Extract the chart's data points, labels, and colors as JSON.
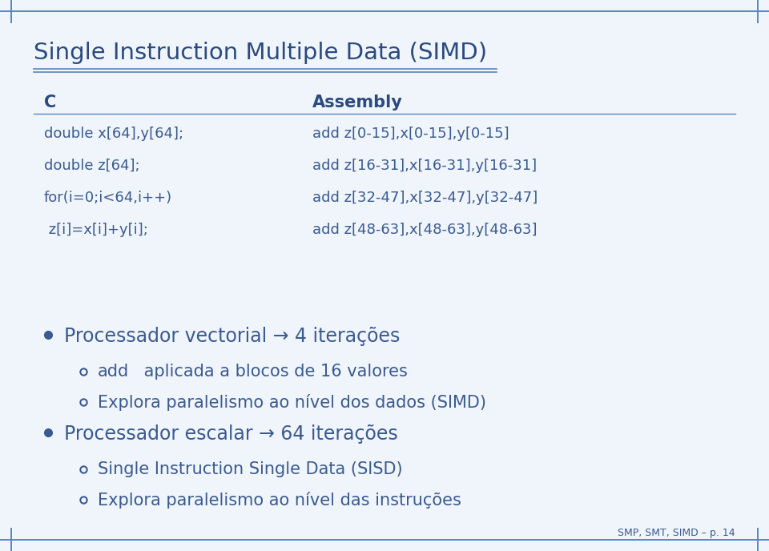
{
  "title": "Single Instruction Multiple Data (SIMD)",
  "bg_color": "#f0f5fb",
  "border_color": "#5a85c0",
  "title_color": "#2a4a80",
  "text_color": "#3a5a90",
  "mono_color": "#3a5a90",
  "footer": "SMP, SMT, SIMD – p. 14",
  "col_c_header": "C",
  "col_asm_header": "Assembly",
  "c_lines": [
    "double x[64],y[64];",
    "double z[64];",
    "for(i=0;i<64,i++)",
    " z[i]=x[i]+y[i];"
  ],
  "asm_lines": [
    "add z[0-15],x[0-15],y[0-15]",
    "add z[16-31],x[16-31],y[16-31]",
    "add z[32-47],x[32-47],y[32-47]",
    "add z[48-63],x[48-63],y[48-63]"
  ],
  "bullets": [
    {
      "level": 0,
      "parts": [
        {
          "text": "Processador vectorial → 4 iterações",
          "mono": false
        }
      ]
    },
    {
      "level": 1,
      "parts": [
        {
          "text": "add",
          "mono": true
        },
        {
          "text": " aplicada a blocos de 16 valores",
          "mono": false
        }
      ]
    },
    {
      "level": 1,
      "parts": [
        {
          "text": "Explora paralelismo ao nível dos dados (SIMD)",
          "mono": false
        }
      ]
    },
    {
      "level": 0,
      "parts": [
        {
          "text": "Processador escalar → 64 iterações",
          "mono": false
        }
      ]
    },
    {
      "level": 1,
      "parts": [
        {
          "text": "Single Instruction Single Data (SISD)",
          "mono": false
        }
      ]
    },
    {
      "level": 1,
      "parts": [
        {
          "text": "Explora paralelismo ao nível das instruções",
          "mono": false
        }
      ]
    }
  ],
  "title_fontsize": 21,
  "header_fontsize": 15,
  "code_fontsize": 13,
  "bullet0_fontsize": 17,
  "bullet1_fontsize": 15,
  "footer_fontsize": 9
}
